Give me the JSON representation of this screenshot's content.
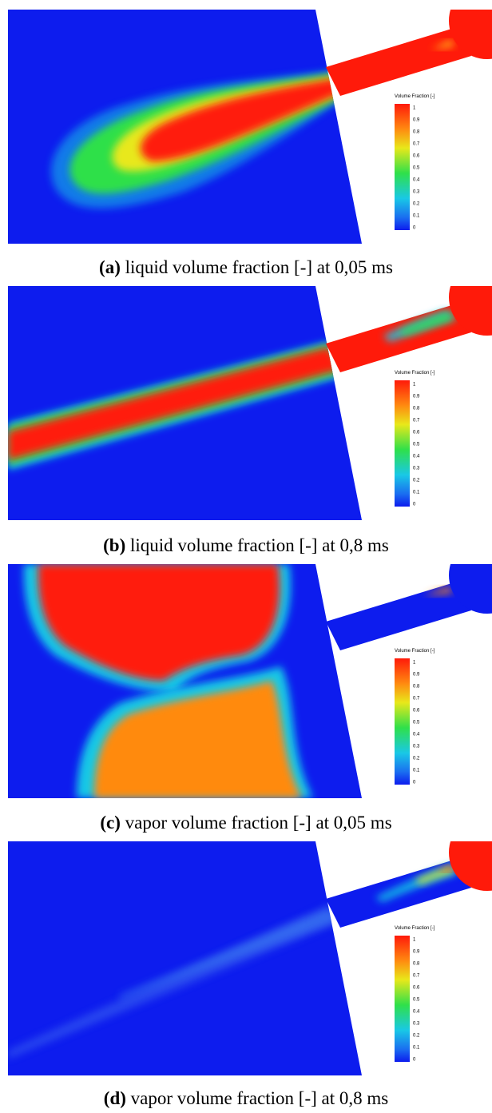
{
  "panels": [
    {
      "label": "(a)",
      "caption": "liquid volume fraction [-] at 0,05 ms",
      "colorbar": {
        "title": "Volume Fraction [-]",
        "ticks": [
          "1",
          "0.9",
          "0.8",
          "0.7",
          "0.6",
          "0.5",
          "0.4",
          "0.3",
          "0.2",
          "0.1",
          "0"
        ]
      }
    },
    {
      "label": "(b)",
      "caption": "liquid volume fraction [-] at 0,8 ms",
      "colorbar": {
        "title": "Volume Fraction [-]",
        "ticks": [
          "1",
          "0.9",
          "0.8",
          "0.7",
          "0.6",
          "0.5",
          "0.4",
          "0.3",
          "0.2",
          "0.1",
          "0"
        ]
      }
    },
    {
      "label": "(c)",
      "caption": "vapor volume fraction [-] at 0,05 ms",
      "colorbar": {
        "title": "Volume Fraction [-]",
        "ticks": [
          "1",
          "0.9",
          "0.8",
          "0.7",
          "0.6",
          "0.5",
          "0.4",
          "0.3",
          "0.2",
          "0.1",
          "0"
        ]
      }
    },
    {
      "label": "(d)",
      "caption": "vapor volume fraction [-] at 0,8 ms",
      "colorbar": {
        "title": "Volume Fraction [-]",
        "ticks": [
          "1",
          "0.9",
          "0.8",
          "0.7",
          "0.6",
          "0.5",
          "0.4",
          "0.3",
          "0.2",
          "0.1",
          "0"
        ]
      }
    }
  ]
}
